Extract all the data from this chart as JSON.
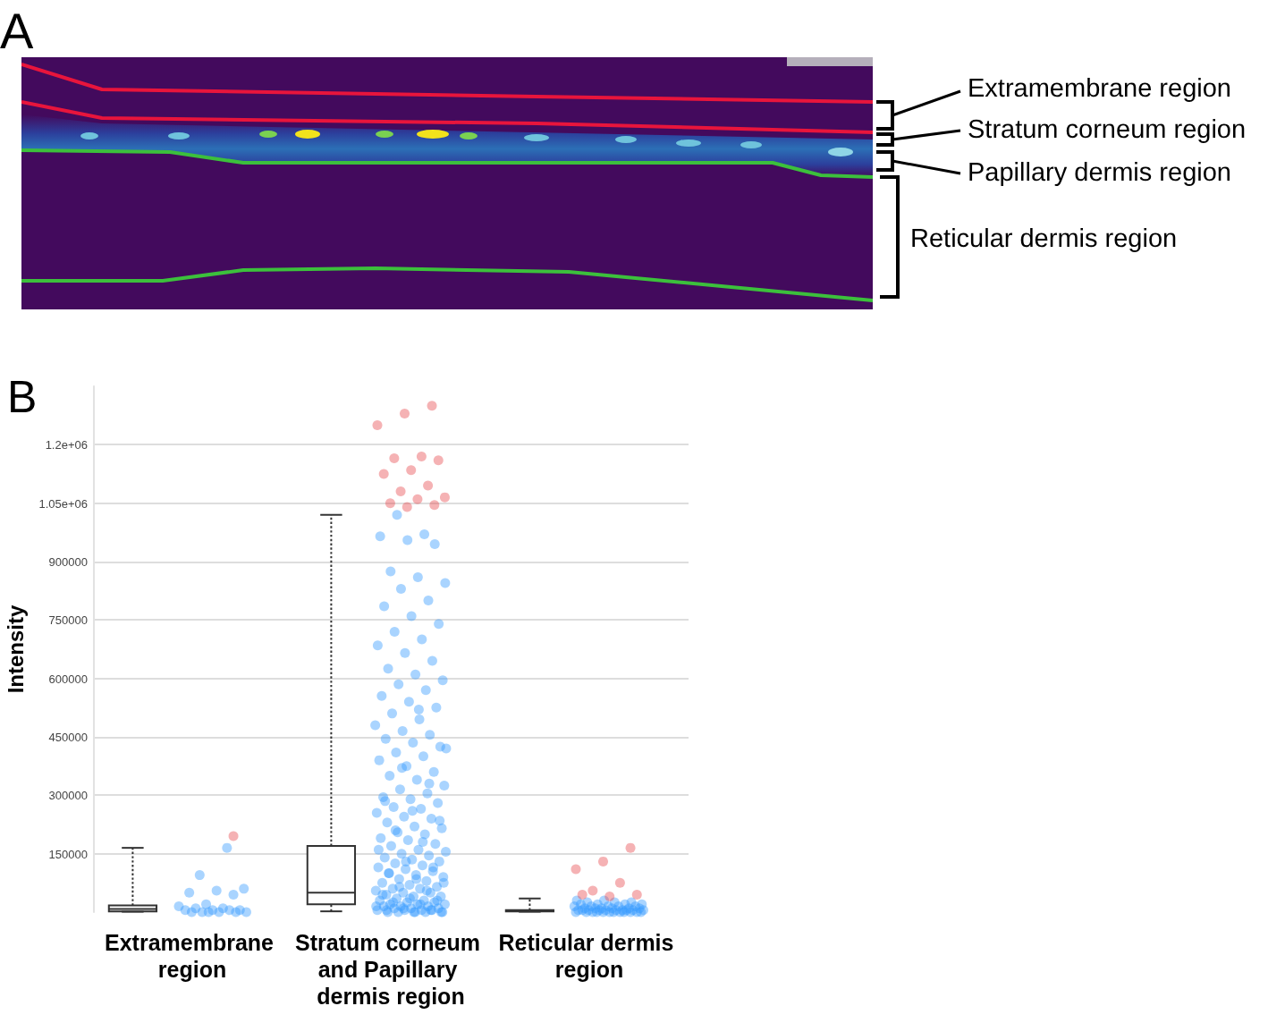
{
  "chart_data": [
    {
      "type": "other",
      "title": "A",
      "annotations": [
        "Extramembrane region",
        "Stratum corneum region",
        "Papillary dermis region",
        "Reticular dermis region"
      ]
    },
    {
      "type": "box",
      "title": "B",
      "ylabel": "Intensity",
      "categories": [
        "Extramembrane region",
        "Stratum corneum and Papillary dermis region",
        "Reticular dermis region"
      ],
      "ylim": [
        0,
        1350000
      ],
      "yticks": [
        150000,
        300000,
        450000,
        600000,
        750000,
        900000,
        {
          "value": 1050000,
          "label": "1.05e+06"
        },
        {
          "value": 1200000,
          "label": "1.2e+06"
        }
      ],
      "grid": "y",
      "marker": "circle",
      "series": [
        {
          "type": "box",
          "color": "#333333",
          "line_style": "dotted",
          "boxes": [
            {
              "low": 1000,
              "q1": 2000,
              "median": 8000,
              "q3": 17000,
              "high": 165000
            },
            {
              "low": 2000,
              "q1": 20000,
              "median": 50000,
              "q3": 170000,
              "high": 1020000
            },
            {
              "low": 1000,
              "q1": 2000,
              "median": 3000,
              "q3": 5000,
              "high": 35000
            }
          ]
        },
        {
          "type": "scatter",
          "color": "#3399ff",
          "x": [
            "Extramembrane region",
            "Extramembrane region",
            "Extramembrane region",
            "Extramembrane region",
            "Extramembrane region",
            "Extramembrane region",
            "Extramembrane region",
            "Extramembrane region",
            "Extramembrane region",
            "Extramembrane region",
            "Extramembrane region",
            "Extramembrane region",
            "Extramembrane region",
            "Extramembrane region",
            "Extramembrane region",
            "Extramembrane region",
            "Extramembrane region",
            "Extramembrane region",
            "Extramembrane region",
            "Extramembrane region",
            "Stratum corneum and Papillary dermis region",
            "Stratum corneum and Papillary dermis region",
            "Stratum corneum and Papillary dermis region",
            "Stratum corneum and Papillary dermis region",
            "Stratum corneum and Papillary dermis region",
            "Stratum corneum and Papillary dermis region",
            "Stratum corneum and Papillary dermis region",
            "Stratum corneum and Papillary dermis region",
            "Stratum corneum and Papillary dermis region",
            "Stratum corneum and Papillary dermis region",
            "Stratum corneum and Papillary dermis region",
            "Stratum corneum and Papillary dermis region",
            "Stratum corneum and Papillary dermis region",
            "Stratum corneum and Papillary dermis region",
            "Stratum corneum and Papillary dermis region",
            "Stratum corneum and Papillary dermis region",
            "Stratum corneum and Papillary dermis region",
            "Stratum corneum and Papillary dermis region",
            "Stratum corneum and Papillary dermis region",
            "Stratum corneum and Papillary dermis region",
            "Stratum corneum and Papillary dermis region",
            "Stratum corneum and Papillary dermis region",
            "Stratum corneum and Papillary dermis region",
            "Stratum corneum and Papillary dermis region",
            "Stratum corneum and Papillary dermis region",
            "Stratum corneum and Papillary dermis region",
            "Stratum corneum and Papillary dermis region",
            "Stratum corneum and Papillary dermis region",
            "Stratum corneum and Papillary dermis region",
            "Stratum corneum and Papillary dermis region",
            "Stratum corneum and Papillary dermis region",
            "Stratum corneum and Papillary dermis region",
            "Stratum corneum and Papillary dermis region",
            "Stratum corneum and Papillary dermis region",
            "Stratum corneum and Papillary dermis region",
            "Stratum corneum and Papillary dermis region",
            "Stratum corneum and Papillary dermis region",
            "Stratum corneum and Papillary dermis region",
            "Stratum corneum and Papillary dermis region",
            "Stratum corneum and Papillary dermis region",
            "Stratum corneum and Papillary dermis region",
            "Stratum corneum and Papillary dermis region",
            "Stratum corneum and Papillary dermis region",
            "Stratum corneum and Papillary dermis region",
            "Stratum corneum and Papillary dermis region",
            "Stratum corneum and Papillary dermis region",
            "Stratum corneum and Papillary dermis region",
            "Stratum corneum and Papillary dermis region",
            "Stratum corneum and Papillary dermis region",
            "Stratum corneum and Papillary dermis region",
            "Stratum corneum and Papillary dermis region",
            "Stratum corneum and Papillary dermis region",
            "Stratum corneum and Papillary dermis region",
            "Stratum corneum and Papillary dermis region",
            "Stratum corneum and Papillary dermis region",
            "Stratum corneum and Papillary dermis region",
            "Stratum corneum and Papillary dermis region",
            "Stratum corneum and Papillary dermis region",
            "Stratum corneum and Papillary dermis region",
            "Stratum corneum and Papillary dermis region",
            "Stratum corneum and Papillary dermis region",
            "Stratum corneum and Papillary dermis region",
            "Stratum corneum and Papillary dermis region",
            "Stratum corneum and Papillary dermis region",
            "Stratum corneum and Papillary dermis region",
            "Stratum corneum and Papillary dermis region",
            "Stratum corneum and Papillary dermis region",
            "Stratum corneum and Papillary dermis region",
            "Stratum corneum and Papillary dermis region",
            "Stratum corneum and Papillary dermis region",
            "Stratum corneum and Papillary dermis region",
            "Stratum corneum and Papillary dermis region",
            "Stratum corneum and Papillary dermis region",
            "Stratum corneum and Papillary dermis region",
            "Stratum corneum and Papillary dermis region",
            "Stratum corneum and Papillary dermis region",
            "Stratum corneum and Papillary dermis region",
            "Stratum corneum and Papillary dermis region",
            "Stratum corneum and Papillary dermis region",
            "Stratum corneum and Papillary dermis region",
            "Stratum corneum and Papillary dermis region",
            "Stratum corneum and Papillary dermis region",
            "Stratum corneum and Papillary dermis region",
            "Stratum corneum and Papillary dermis region",
            "Stratum corneum and Papillary dermis region",
            "Stratum corneum and Papillary dermis region",
            "Stratum corneum and Papillary dermis region",
            "Stratum corneum and Papillary dermis region",
            "Stratum corneum and Papillary dermis region",
            "Stratum corneum and Papillary dermis region",
            "Stratum corneum and Papillary dermis region",
            "Stratum corneum and Papillary dermis region",
            "Stratum corneum and Papillary dermis region",
            "Stratum corneum and Papillary dermis region",
            "Stratum corneum and Papillary dermis region",
            "Stratum corneum and Papillary dermis region",
            "Stratum corneum and Papillary dermis region",
            "Stratum corneum and Papillary dermis region",
            "Stratum corneum and Papillary dermis region",
            "Stratum corneum and Papillary dermis region",
            "Stratum corneum and Papillary dermis region",
            "Stratum corneum and Papillary dermis region",
            "Stratum corneum and Papillary dermis region",
            "Stratum corneum and Papillary dermis region",
            "Stratum corneum and Papillary dermis region",
            "Stratum corneum and Papillary dermis region",
            "Stratum corneum and Papillary dermis region",
            "Stratum corneum and Papillary dermis region",
            "Stratum corneum and Papillary dermis region",
            "Stratum corneum and Papillary dermis region",
            "Stratum corneum and Papillary dermis region",
            "Stratum corneum and Papillary dermis region",
            "Reticular dermis region",
            "Reticular dermis region",
            "Reticular dermis region",
            "Reticular dermis region",
            "Reticular dermis region",
            "Reticular dermis region",
            "Reticular dermis region",
            "Reticular dermis region",
            "Reticular dermis region",
            "Reticular dermis region",
            "Reticular dermis region",
            "Reticular dermis region",
            "Reticular dermis region",
            "Reticular dermis region",
            "Reticular dermis region",
            "Reticular dermis region",
            "Reticular dermis region",
            "Reticular dermis region",
            "Reticular dermis region",
            "Reticular dermis region",
            "Reticular dermis region",
            "Reticular dermis region",
            "Reticular dermis region",
            "Reticular dermis region",
            "Reticular dermis region",
            "Reticular dermis region",
            "Reticular dermis region",
            "Reticular dermis region",
            "Reticular dermis region",
            "Reticular dermis region",
            "Reticular dermis region",
            "Reticular dermis region",
            "Reticular dermis region",
            "Reticular dermis region",
            "Reticular dermis region",
            "Reticular dermis region",
            "Reticular dermis region",
            "Reticular dermis region",
            "Reticular dermis region",
            "Reticular dermis region",
            "Reticular dermis region",
            "Reticular dermis region",
            "Stratum corneum and Papillary dermis region",
            "Stratum corneum and Papillary dermis region",
            "Stratum corneum and Papillary dermis region",
            "Stratum corneum and Papillary dermis region",
            "Stratum corneum and Papillary dermis region",
            "Stratum corneum and Papillary dermis region",
            "Stratum corneum and Papillary dermis region",
            "Stratum corneum and Papillary dermis region",
            "Stratum corneum and Papillary dermis region",
            "Stratum corneum and Papillary dermis region",
            "Stratum corneum and Papillary dermis region",
            "Stratum corneum and Papillary dermis region",
            "Stratum corneum and Papillary dermis region",
            "Stratum corneum and Papillary dermis region",
            "Stratum corneum and Papillary dermis region",
            "Stratum corneum and Papillary dermis region",
            "Stratum corneum and Papillary dermis region",
            "Stratum corneum and Papillary dermis region",
            "Stratum corneum and Papillary dermis region",
            "Stratum corneum and Papillary dermis region",
            "Stratum corneum and Papillary dermis region",
            "Stratum corneum and Papillary dermis region",
            "Stratum corneum and Papillary dermis region",
            "Stratum corneum and Papillary dermis region",
            "Stratum corneum and Papillary dermis region",
            "Stratum corneum and Papillary dermis region",
            "Stratum corneum and Papillary dermis region",
            "Stratum corneum and Papillary dermis region"
          ],
          "values": [
            165000,
            95000,
            60000,
            55000,
            50000,
            45000,
            20000,
            15000,
            10000,
            10000,
            5000,
            5000,
            5000,
            5000,
            0,
            0,
            0,
            0,
            0,
            0,
            0,
            0,
            0,
            0,
            0,
            5000,
            5000,
            5000,
            5000,
            10000,
            10000,
            10000,
            15000,
            15000,
            15000,
            20000,
            20000,
            20000,
            25000,
            25000,
            30000,
            30000,
            35000,
            40000,
            40000,
            45000,
            50000,
            50000,
            55000,
            60000,
            60000,
            65000,
            70000,
            75000,
            80000,
            85000,
            90000,
            95000,
            100000,
            105000,
            110000,
            115000,
            120000,
            125000,
            130000,
            135000,
            140000,
            145000,
            150000,
            155000,
            160000,
            170000,
            175000,
            185000,
            190000,
            200000,
            205000,
            215000,
            220000,
            230000,
            240000,
            245000,
            255000,
            265000,
            270000,
            280000,
            290000,
            295000,
            305000,
            315000,
            325000,
            340000,
            350000,
            360000,
            375000,
            390000,
            400000,
            410000,
            425000,
            435000,
            445000,
            455000,
            465000,
            480000,
            495000,
            510000,
            525000,
            540000,
            555000,
            570000,
            585000,
            595000,
            610000,
            625000,
            645000,
            665000,
            685000,
            700000,
            720000,
            740000,
            760000,
            785000,
            800000,
            830000,
            845000,
            860000,
            875000,
            945000,
            955000,
            965000,
            970000,
            1020000,
            0,
            0,
            0,
            0,
            0,
            0,
            0,
            0,
            0,
            0,
            0,
            0,
            5000,
            5000,
            5000,
            5000,
            5000,
            5000,
            5000,
            5000,
            5000,
            5000,
            10000,
            10000,
            10000,
            10000,
            10000,
            10000,
            15000,
            15000,
            15000,
            15000,
            15000,
            20000,
            20000,
            20000,
            20000,
            25000,
            25000,
            25000,
            30000,
            30000,
            0,
            0,
            5000,
            5000,
            10000,
            15000,
            20000,
            25000,
            30000,
            35000,
            45000,
            55000,
            65000,
            75000,
            85000,
            100000,
            115000,
            130000,
            160000,
            180000,
            210000,
            235000,
            260000,
            285000,
            330000,
            370000,
            420000,
            520000
          ]
        },
        {
          "type": "scatter",
          "color": "#e8474c",
          "x": [
            "Extramembrane region",
            "Stratum corneum and Papillary dermis region",
            "Stratum corneum and Papillary dermis region",
            "Stratum corneum and Papillary dermis region",
            "Stratum corneum and Papillary dermis region",
            "Stratum corneum and Papillary dermis region",
            "Stratum corneum and Papillary dermis region",
            "Stratum corneum and Papillary dermis region",
            "Stratum corneum and Papillary dermis region",
            "Stratum corneum and Papillary dermis region",
            "Stratum corneum and Papillary dermis region",
            "Stratum corneum and Papillary dermis region",
            "Stratum corneum and Papillary dermis region",
            "Stratum corneum and Papillary dermis region",
            "Stratum corneum and Papillary dermis region",
            "Stratum corneum and Papillary dermis region",
            "Reticular dermis region",
            "Reticular dermis region",
            "Reticular dermis region",
            "Reticular dermis region",
            "Reticular dermis region",
            "Reticular dermis region",
            "Reticular dermis region",
            "Reticular dermis region"
          ],
          "values": [
            195000,
            1300000,
            1280000,
            1250000,
            1170000,
            1165000,
            1160000,
            1135000,
            1125000,
            1095000,
            1080000,
            1065000,
            1060000,
            1050000,
            1045000,
            1040000,
            165000,
            130000,
            110000,
            75000,
            55000,
            45000,
            40000,
            45000
          ]
        }
      ]
    }
  ]
}
